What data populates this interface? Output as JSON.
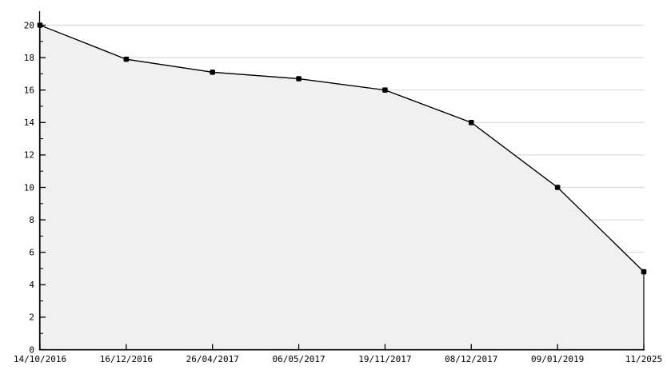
{
  "chart_data": {
    "type": "area",
    "title": "",
    "xlabel": "",
    "ylabel": "",
    "categories": [
      "14/10/2016",
      "16/12/2016",
      "26/04/2017",
      "06/05/2017",
      "19/11/2017",
      "08/12/2017",
      "09/01/2019",
      "11/2025"
    ],
    "series": [
      {
        "name": "value",
        "values": [
          20,
          17.9,
          17.1,
          16.7,
          16,
          14,
          10,
          4.8
        ]
      }
    ],
    "ylim": [
      0,
      20
    ],
    "y_major_ticks": [
      0,
      2,
      4,
      6,
      8,
      10,
      12,
      14,
      16,
      18,
      20
    ],
    "y_minor_step": 1,
    "grid": "horizontal-major",
    "legend_position": "none",
    "colors": {
      "area_fill": "#f0f0f0",
      "line": "#000000",
      "marker": "#000000",
      "grid": "#dcdcdc",
      "axis": "#000000",
      "text": "#000000",
      "background": "#ffffff"
    }
  }
}
